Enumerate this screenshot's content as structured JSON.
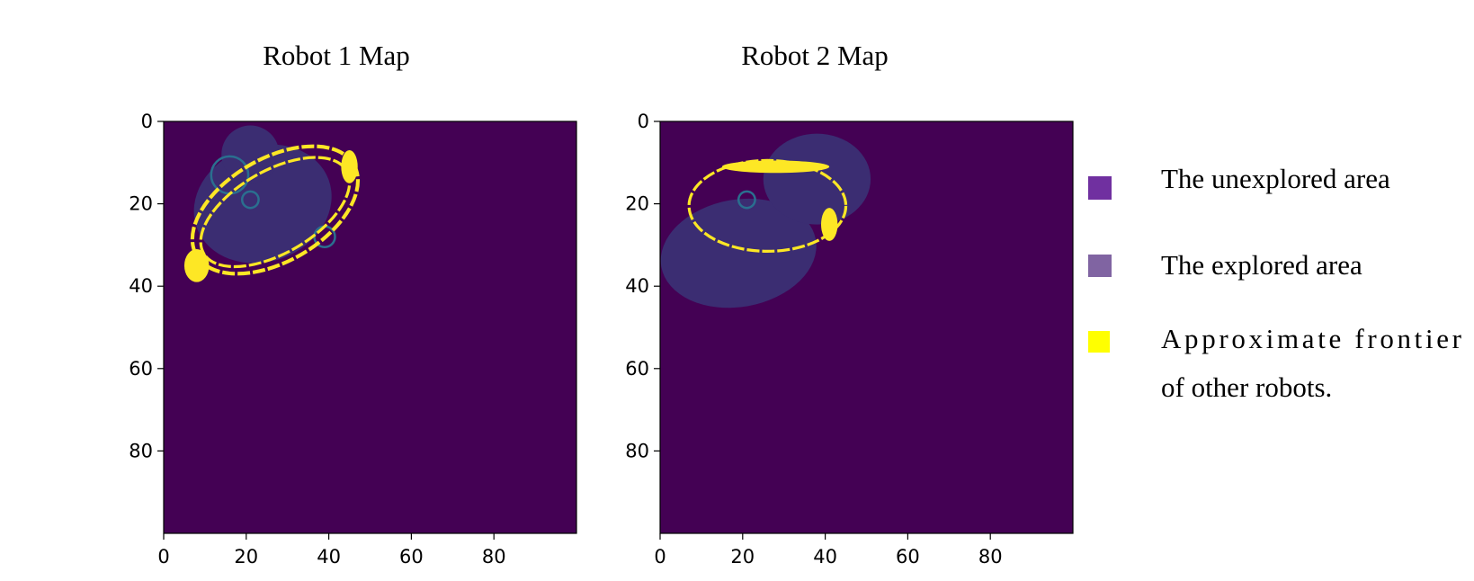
{
  "colors": {
    "unexplored": "#440154",
    "explored": "#3b2d72",
    "frontier": "#fde725",
    "outline": "#2a6f8f",
    "legend_unexplored": "#7030a0",
    "legend_explored": "#8064a2",
    "legend_frontier": "#ffff00"
  },
  "chart_data": [
    {
      "type": "heatmap",
      "title": "Robot 1 Map",
      "xlabel": "",
      "ylabel": "",
      "xlim": [
        0,
        100
      ],
      "ylim": [
        100,
        0
      ],
      "x_ticks": [
        0,
        20,
        40,
        60,
        80
      ],
      "y_ticks": [
        0,
        20,
        40,
        60,
        80
      ],
      "grid": false,
      "explored_regions": [
        {
          "shape": "ellipse",
          "cx": 24,
          "cy": 20,
          "rx": 17,
          "ry": 14,
          "rotate": -20
        },
        {
          "shape": "circle",
          "cx": 21,
          "cy": 8,
          "r": 7
        }
      ],
      "outline_circles": [
        {
          "cx": 16,
          "cy": 13,
          "r": 4.5
        },
        {
          "cx": 21,
          "cy": 19,
          "r": 2
        },
        {
          "cx": 39,
          "cy": 28,
          "r": 2.5
        }
      ],
      "frontier_ellipses": [
        {
          "cx": 27,
          "cy": 21.5,
          "rx": 22,
          "ry": 12.5,
          "rotate": -30,
          "width": 0.9
        },
        {
          "cx": 27,
          "cy": 22,
          "rx": 20,
          "ry": 10,
          "rotate": -30,
          "width": 0.7
        }
      ],
      "frontier_blobs": [
        {
          "cx": 8,
          "cy": 35,
          "rx": 3,
          "ry": 4
        },
        {
          "cx": 45,
          "cy": 11,
          "rx": 2,
          "ry": 4
        }
      ]
    },
    {
      "type": "heatmap",
      "title": "Robot 2 Map",
      "xlabel": "",
      "ylabel": "",
      "xlim": [
        0,
        100
      ],
      "ylim": [
        100,
        0
      ],
      "x_ticks": [
        0,
        20,
        40,
        60,
        80
      ],
      "y_ticks": [
        0,
        20,
        40,
        60,
        80
      ],
      "grid": false,
      "explored_regions": [
        {
          "shape": "ellipse",
          "cx": 19,
          "cy": 32,
          "rx": 19,
          "ry": 13,
          "rotate": -10
        },
        {
          "shape": "ellipse",
          "cx": 38,
          "cy": 14,
          "rx": 13,
          "ry": 11,
          "rotate": 0
        }
      ],
      "outline_circles": [
        {
          "cx": 21,
          "cy": 19,
          "r": 2
        }
      ],
      "frontier_ellipses": [
        {
          "cx": 26,
          "cy": 20.5,
          "rx": 19,
          "ry": 11,
          "rotate": 0,
          "width": 0.7
        }
      ],
      "frontier_blobs": [
        {
          "cx": 28,
          "cy": 11,
          "rx": 13,
          "ry": 1.5
        },
        {
          "cx": 41,
          "cy": 25,
          "rx": 2,
          "ry": 4
        }
      ]
    }
  ],
  "legend": [
    {
      "label": "The unexplored area",
      "color_key": "legend_unexplored"
    },
    {
      "label": "The explored area",
      "color_key": "legend_explored"
    },
    {
      "label": "Approximate frontier",
      "label2": "of other robots.",
      "color_key": "legend_frontier"
    }
  ]
}
